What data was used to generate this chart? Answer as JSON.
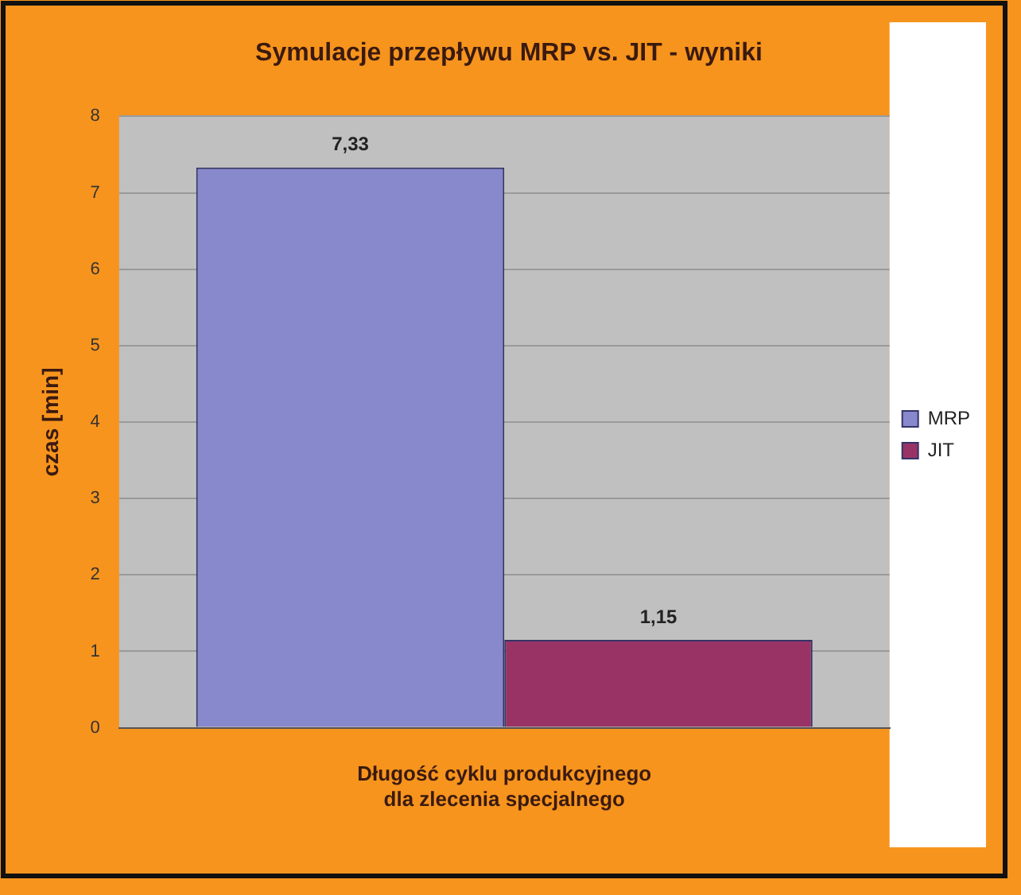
{
  "chart_data": {
    "type": "bar",
    "title": "Symulacje przepływu MRP vs. JIT - wyniki",
    "ylabel": "czas [min]",
    "categories": [
      "Długość cyklu produkcyjnego dla zlecenia specjalnego"
    ],
    "series": [
      {
        "name": "MRP",
        "color": "#8888cc",
        "values": [
          7.33
        ],
        "value_labels": [
          "7,33"
        ]
      },
      {
        "name": "JIT",
        "color": "#993366",
        "values": [
          1.15
        ],
        "value_labels": [
          "1,15"
        ]
      }
    ],
    "ylim": [
      0,
      8
    ],
    "yticks": [
      0,
      1,
      2,
      3,
      4,
      5,
      6,
      7,
      8
    ],
    "grid": "y",
    "legend": "right"
  }
}
